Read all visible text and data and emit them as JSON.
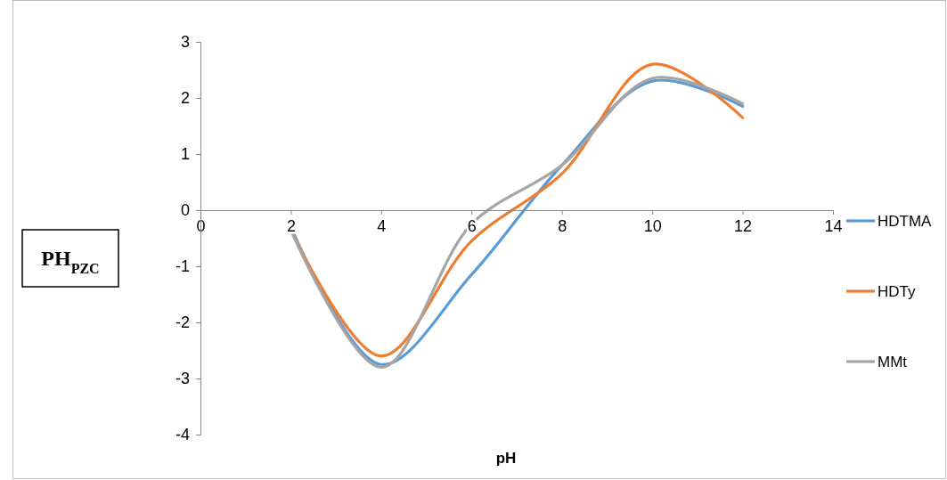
{
  "chart_data": {
    "type": "line",
    "xlabel": "pH",
    "ylabel": "PH$_{PZC}$",
    "x": [
      2,
      4,
      6,
      8,
      10,
      12
    ],
    "series": [
      {
        "name": "HDTMA",
        "color": "#5b9bd5",
        "values": [
          -0.3,
          -2.75,
          -1.15,
          0.8,
          2.3,
          1.85
        ]
      },
      {
        "name": "HDTy",
        "color": "#ed7d31",
        "values": [
          -0.35,
          -2.6,
          -0.55,
          0.65,
          2.6,
          1.65
        ]
      },
      {
        "name": "MMt",
        "color": "#a5a5a5",
        "values": [
          -0.35,
          -2.8,
          -0.25,
          0.8,
          2.35,
          1.9
        ]
      }
    ],
    "xlim": [
      0,
      14
    ],
    "xticks": [
      0,
      2,
      4,
      6,
      8,
      10,
      12,
      14
    ],
    "ylim": [
      -4,
      3
    ],
    "yticks": [
      -4,
      -3,
      -2,
      -1,
      0,
      1,
      2,
      3
    ],
    "legend": "right",
    "grid": false,
    "marker": "none",
    "line_style": "solid"
  }
}
